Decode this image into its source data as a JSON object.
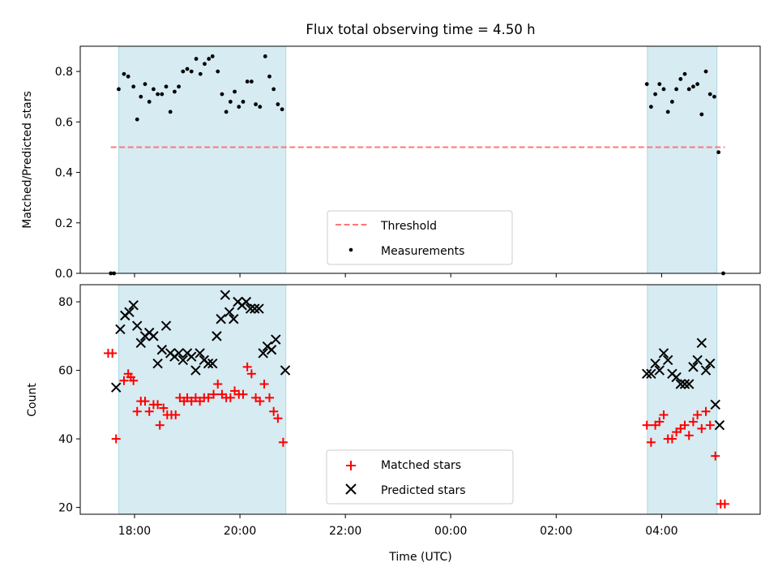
{
  "chart_data": [
    {
      "type": "scatter",
      "title": "Flux total observing time = 4.50 h",
      "xlabel": "",
      "ylabel": "Matched/Predicted stars",
      "ylim": [
        0.0,
        0.9
      ],
      "yticks": [
        "0.0",
        "0.2",
        "0.4",
        "0.6",
        "0.8"
      ],
      "xlim_hours": [
        16.97,
        29.87
      ],
      "shaded_intervals_hours": [
        [
          17.7,
          20.87
        ],
        [
          27.73,
          29.05
        ]
      ],
      "threshold": {
        "name": "Threshold",
        "y": 0.5,
        "x_from": 17.55,
        "x_to": 29.2,
        "color": "#ff7777"
      },
      "legend_position": "lower center",
      "series": [
        {
          "name": "Measurements",
          "color": "#000000",
          "points": [
            [
              17.55,
              0.0
            ],
            [
              17.61,
              0.0
            ],
            [
              17.7,
              0.73
            ],
            [
              17.8,
              0.79
            ],
            [
              17.88,
              0.78
            ],
            [
              17.98,
              0.74
            ],
            [
              18.05,
              0.61
            ],
            [
              18.12,
              0.7
            ],
            [
              18.2,
              0.75
            ],
            [
              18.28,
              0.68
            ],
            [
              18.36,
              0.73
            ],
            [
              18.44,
              0.71
            ],
            [
              18.52,
              0.71
            ],
            [
              18.6,
              0.74
            ],
            [
              18.68,
              0.64
            ],
            [
              18.76,
              0.72
            ],
            [
              18.84,
              0.74
            ],
            [
              18.92,
              0.8
            ],
            [
              19.0,
              0.81
            ],
            [
              19.08,
              0.8
            ],
            [
              19.17,
              0.85
            ],
            [
              19.25,
              0.79
            ],
            [
              19.33,
              0.83
            ],
            [
              19.41,
              0.85
            ],
            [
              19.48,
              0.86
            ],
            [
              19.58,
              0.8
            ],
            [
              19.66,
              0.71
            ],
            [
              19.74,
              0.64
            ],
            [
              19.82,
              0.68
            ],
            [
              19.9,
              0.72
            ],
            [
              19.98,
              0.66
            ],
            [
              20.06,
              0.68
            ],
            [
              20.14,
              0.76
            ],
            [
              20.22,
              0.76
            ],
            [
              20.3,
              0.67
            ],
            [
              20.38,
              0.66
            ],
            [
              20.48,
              0.86
            ],
            [
              20.56,
              0.78
            ],
            [
              20.64,
              0.73
            ],
            [
              20.72,
              0.67
            ],
            [
              20.8,
              0.65
            ],
            [
              27.72,
              0.75
            ],
            [
              27.8,
              0.66
            ],
            [
              27.88,
              0.71
            ],
            [
              27.96,
              0.75
            ],
            [
              28.04,
              0.73
            ],
            [
              28.12,
              0.64
            ],
            [
              28.2,
              0.68
            ],
            [
              28.28,
              0.73
            ],
            [
              28.36,
              0.77
            ],
            [
              28.44,
              0.79
            ],
            [
              28.52,
              0.73
            ],
            [
              28.6,
              0.74
            ],
            [
              28.68,
              0.75
            ],
            [
              28.76,
              0.63
            ],
            [
              28.84,
              0.8
            ],
            [
              28.92,
              0.71
            ],
            [
              29.0,
              0.7
            ],
            [
              29.08,
              0.48
            ],
            [
              29.17,
              0.0
            ]
          ]
        }
      ]
    },
    {
      "type": "scatter",
      "title": "",
      "xlabel": "Time (UTC)",
      "ylabel": "Count",
      "ylim": [
        18,
        85
      ],
      "yticks": [
        "20",
        "40",
        "60",
        "80"
      ],
      "xticks": [
        "18:00",
        "20:00",
        "22:00",
        "00:00",
        "02:00",
        "04:00"
      ],
      "xtick_hours": [
        18,
        20,
        22,
        24,
        26,
        28
      ],
      "xlim_hours": [
        16.97,
        29.87
      ],
      "shaded_intervals_hours": [
        [
          17.7,
          20.87
        ],
        [
          27.73,
          29.05
        ]
      ],
      "legend_position": "lower center",
      "series": [
        {
          "name": "Matched stars",
          "marker": "plus",
          "color": "#ff0000",
          "points": [
            [
              17.5,
              65
            ],
            [
              17.58,
              65
            ],
            [
              17.65,
              40
            ],
            [
              17.8,
              57
            ],
            [
              17.88,
              59
            ],
            [
              17.93,
              58
            ],
            [
              17.98,
              57
            ],
            [
              18.05,
              48
            ],
            [
              18.12,
              51
            ],
            [
              18.2,
              51
            ],
            [
              18.28,
              48
            ],
            [
              18.36,
              50
            ],
            [
              18.44,
              50
            ],
            [
              18.48,
              44
            ],
            [
              18.55,
              49
            ],
            [
              18.62,
              47
            ],
            [
              18.7,
              47
            ],
            [
              18.78,
              47
            ],
            [
              18.86,
              52
            ],
            [
              18.94,
              51
            ],
            [
              19.0,
              52
            ],
            [
              19.08,
              51
            ],
            [
              19.16,
              52
            ],
            [
              19.24,
              51
            ],
            [
              19.32,
              52
            ],
            [
              19.4,
              52
            ],
            [
              19.5,
              53
            ],
            [
              19.58,
              56
            ],
            [
              19.66,
              53
            ],
            [
              19.74,
              52
            ],
            [
              19.82,
              52
            ],
            [
              19.9,
              54
            ],
            [
              19.98,
              53
            ],
            [
              20.06,
              53
            ],
            [
              20.14,
              61
            ],
            [
              20.22,
              59
            ],
            [
              20.3,
              52
            ],
            [
              20.38,
              51
            ],
            [
              20.46,
              56
            ],
            [
              20.56,
              52
            ],
            [
              20.64,
              48
            ],
            [
              20.72,
              46
            ],
            [
              20.82,
              39
            ],
            [
              27.72,
              44
            ],
            [
              27.8,
              39
            ],
            [
              27.88,
              44
            ],
            [
              27.96,
              45
            ],
            [
              28.04,
              47
            ],
            [
              28.12,
              40
            ],
            [
              28.2,
              40
            ],
            [
              28.28,
              42
            ],
            [
              28.36,
              43
            ],
            [
              28.44,
              44
            ],
            [
              28.52,
              41
            ],
            [
              28.6,
              45
            ],
            [
              28.68,
              47
            ],
            [
              28.76,
              43
            ],
            [
              28.84,
              48
            ],
            [
              28.92,
              44
            ],
            [
              29.02,
              35
            ],
            [
              29.12,
              21
            ],
            [
              29.2,
              21
            ]
          ]
        },
        {
          "name": "Predicted stars",
          "marker": "x",
          "color": "#000000",
          "points": [
            [
              17.65,
              55
            ],
            [
              17.73,
              72
            ],
            [
              17.82,
              76
            ],
            [
              17.9,
              77
            ],
            [
              17.98,
              79
            ],
            [
              18.05,
              73
            ],
            [
              18.12,
              68
            ],
            [
              18.2,
              70
            ],
            [
              18.28,
              71
            ],
            [
              18.36,
              70
            ],
            [
              18.44,
              62
            ],
            [
              18.52,
              66
            ],
            [
              18.6,
              73
            ],
            [
              18.68,
              65
            ],
            [
              18.76,
              64
            ],
            [
              18.84,
              65
            ],
            [
              18.92,
              63
            ],
            [
              19.0,
              65
            ],
            [
              19.08,
              64
            ],
            [
              19.16,
              60
            ],
            [
              19.24,
              65
            ],
            [
              19.32,
              63
            ],
            [
              19.4,
              62
            ],
            [
              19.48,
              62
            ],
            [
              19.56,
              70
            ],
            [
              19.64,
              75
            ],
            [
              19.72,
              82
            ],
            [
              19.8,
              77
            ],
            [
              19.88,
              75
            ],
            [
              19.96,
              80
            ],
            [
              20.04,
              79
            ],
            [
              20.12,
              80
            ],
            [
              20.2,
              78
            ],
            [
              20.28,
              78
            ],
            [
              20.36,
              78
            ],
            [
              20.44,
              65
            ],
            [
              20.52,
              67
            ],
            [
              20.6,
              66
            ],
            [
              20.68,
              69
            ],
            [
              20.86,
              60
            ],
            [
              27.72,
              59
            ],
            [
              27.8,
              59
            ],
            [
              27.88,
              62
            ],
            [
              27.96,
              60
            ],
            [
              28.04,
              65
            ],
            [
              28.12,
              63
            ],
            [
              28.2,
              59
            ],
            [
              28.28,
              58
            ],
            [
              28.36,
              56
            ],
            [
              28.44,
              56
            ],
            [
              28.52,
              56
            ],
            [
              28.6,
              61
            ],
            [
              28.68,
              63
            ],
            [
              28.76,
              68
            ],
            [
              28.84,
              60
            ],
            [
              28.92,
              62
            ],
            [
              29.02,
              50
            ],
            [
              29.1,
              44
            ]
          ]
        }
      ]
    }
  ]
}
